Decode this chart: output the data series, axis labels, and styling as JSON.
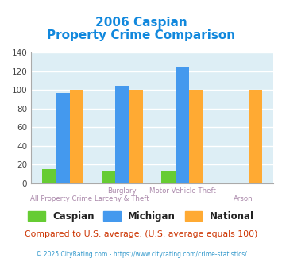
{
  "title_line1": "2006 Caspian",
  "title_line2": "Property Crime Comparison",
  "caspian": [
    15,
    14,
    13,
    0
  ],
  "michigan": [
    97,
    104,
    124,
    0
  ],
  "national": [
    100,
    100,
    100,
    100
  ],
  "caspian_color": "#66cc33",
  "michigan_color": "#4499ee",
  "national_color": "#ffaa33",
  "ylim": [
    0,
    140
  ],
  "yticks": [
    0,
    20,
    40,
    60,
    80,
    100,
    120,
    140
  ],
  "background_color": "#ddeef5",
  "grid_color": "#ffffff",
  "title_color": "#1188dd",
  "xlabel_color": "#aa88aa",
  "footer_text": "Compared to U.S. average. (U.S. average equals 100)",
  "copyright_text": "© 2025 CityRating.com - https://www.cityrating.com/crime-statistics/",
  "legend_labels": [
    "Caspian",
    "Michigan",
    "National"
  ]
}
